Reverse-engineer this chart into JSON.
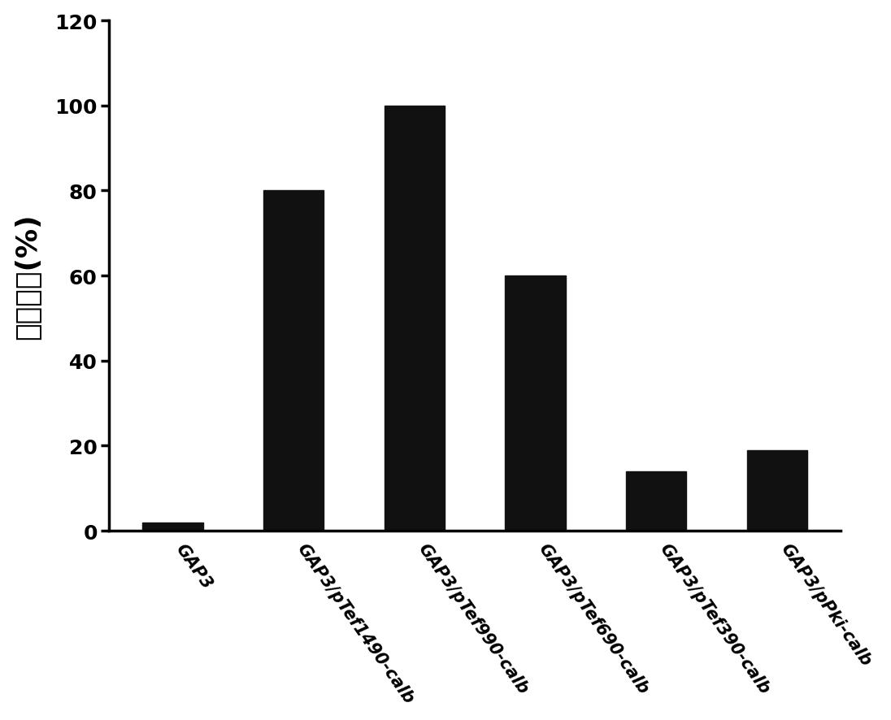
{
  "categories": [
    "GAP3",
    "GAP3/pTef1490-calb",
    "GAP3/pTef990-calb",
    "GAP3/pTef690-calb",
    "GAP3/pTef390-calb",
    "GAP3/pPki-calb"
  ],
  "values": [
    2,
    80,
    100,
    60,
    14,
    19
  ],
  "bar_color": "#111111",
  "ylabel": "相对活性(%)",
  "ylim": [
    0,
    120
  ],
  "yticks": [
    0,
    20,
    40,
    60,
    80,
    100,
    120
  ],
  "background_color": "#ffffff",
  "bar_width": 0.5,
  "ylabel_fontsize": 26,
  "ytick_fontsize": 18,
  "xtick_fontsize": 15,
  "xtick_rotation": -55
}
